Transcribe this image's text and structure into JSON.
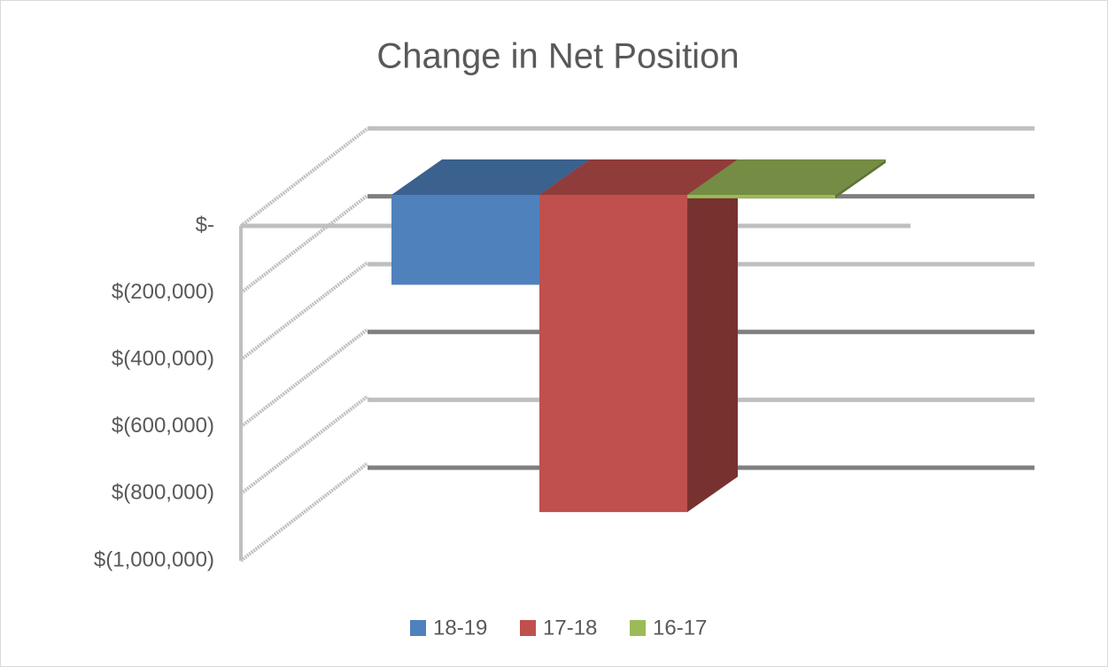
{
  "chart_data": {
    "type": "bar3d",
    "title": "Change in Net Position",
    "categories": [
      ""
    ],
    "series": [
      {
        "name": "18-19",
        "color": "#4f81bd",
        "values": [
          -265000
        ]
      },
      {
        "name": "17-18",
        "color": "#c0504d",
        "values": [
          -935000
        ]
      },
      {
        "name": "16-17",
        "color": "#9bbb59",
        "values": [
          -10000
        ]
      }
    ],
    "ylim": [
      -1000000,
      0
    ],
    "yticks": [
      {
        "value": 0,
        "label": "$-"
      },
      {
        "value": -200000,
        "label": "$(200,000)"
      },
      {
        "value": -400000,
        "label": "$(400,000)"
      },
      {
        "value": -600000,
        "label": "$(600,000)"
      },
      {
        "value": -800000,
        "label": "$(800,000)"
      },
      {
        "value": -1000000,
        "label": "$(1,000,000)"
      }
    ],
    "grid": true,
    "legend": "bottom"
  }
}
